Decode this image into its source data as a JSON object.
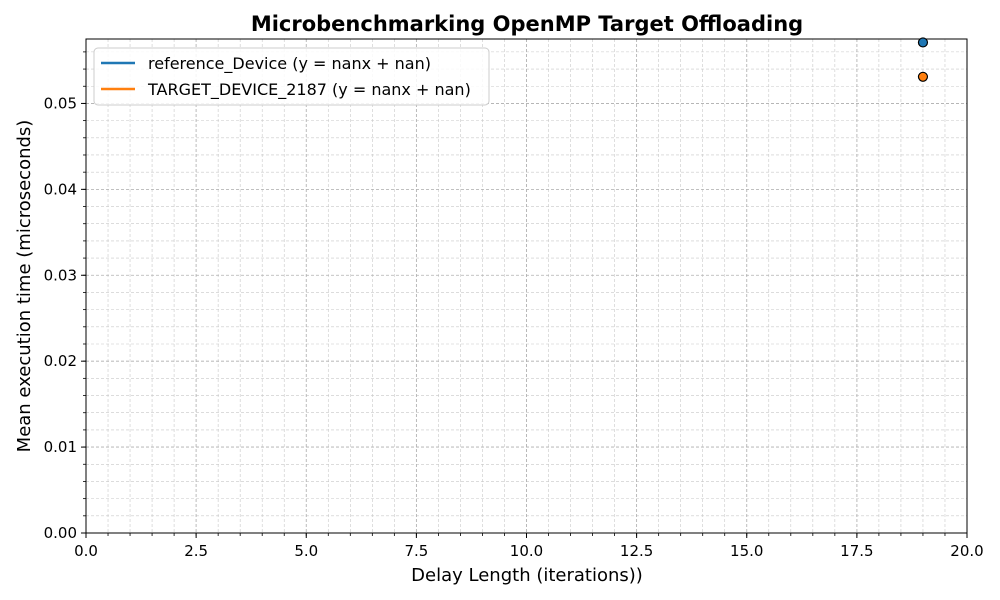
{
  "chart_data": {
    "type": "scatter",
    "title": "Microbenchmarking OpenMP Target Offloading",
    "xlabel": "Delay Length (iterations))",
    "ylabel": "Mean execution time (microseconds)",
    "xlim": [
      0,
      20
    ],
    "ylim": [
      0,
      0.0575
    ],
    "xticks": [
      0,
      2.5,
      5,
      7.5,
      10,
      12.5,
      15,
      17.5,
      20
    ],
    "xtick_labels": [
      "0.0",
      "2.5",
      "5.0",
      "7.5",
      "10.0",
      "12.5",
      "15.0",
      "17.5",
      "20.0"
    ],
    "yticks": [
      0,
      0.01,
      0.02,
      0.03,
      0.04,
      0.05
    ],
    "ytick_labels": [
      "0.00",
      "0.01",
      "0.02",
      "0.03",
      "0.04",
      "0.05"
    ],
    "grid": true,
    "legend_position": "top-left",
    "series": [
      {
        "name": "reference_Device (y = nanx + nan)",
        "color": "#1f77b4",
        "x": [
          19
        ],
        "y": [
          0.0571
        ]
      },
      {
        "name": "TARGET_DEVICE_2187 (y = nanx + nan)",
        "color": "#ff7f0e",
        "x": [
          19
        ],
        "y": [
          0.0531
        ]
      }
    ]
  }
}
